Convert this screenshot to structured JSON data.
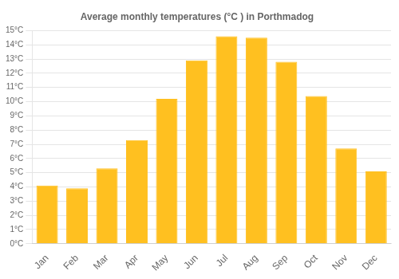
{
  "chart_data": {
    "type": "bar",
    "title": "Average monthly temperatures (°C ) in Porthmadog",
    "categories": [
      "Jan",
      "Feb",
      "Mar",
      "Apr",
      "May",
      "Jun",
      "Jul",
      "Aug",
      "Sep",
      "Oct",
      "Nov",
      "Dec"
    ],
    "values": [
      4.1,
      3.9,
      5.3,
      7.3,
      10.2,
      12.9,
      14.6,
      14.5,
      12.8,
      10.4,
      6.7,
      5.1
    ],
    "color": "#FFC020",
    "ylim": [
      0,
      15
    ],
    "yticks": [
      {
        "value": 0,
        "label": "0°C"
      },
      {
        "value": 1,
        "label": "1°C"
      },
      {
        "value": 2,
        "label": "2°C"
      },
      {
        "value": 3,
        "label": "3°C"
      },
      {
        "value": 4,
        "label": "4°C"
      },
      {
        "value": 5,
        "label": "5°C"
      },
      {
        "value": 6,
        "label": "6°C"
      },
      {
        "value": 7,
        "label": "7°C"
      },
      {
        "value": 8,
        "label": "8°C"
      },
      {
        "value": 9,
        "label": "9°C"
      },
      {
        "value": 10,
        "label": "10°C"
      },
      {
        "value": 11,
        "label": "11°C"
      },
      {
        "value": 12,
        "label": "12°C"
      },
      {
        "value": 13,
        "label": "13°C"
      },
      {
        "value": 14,
        "label": "14°C"
      },
      {
        "value": 15,
        "label": "15°C"
      }
    ],
    "grid": true
  }
}
